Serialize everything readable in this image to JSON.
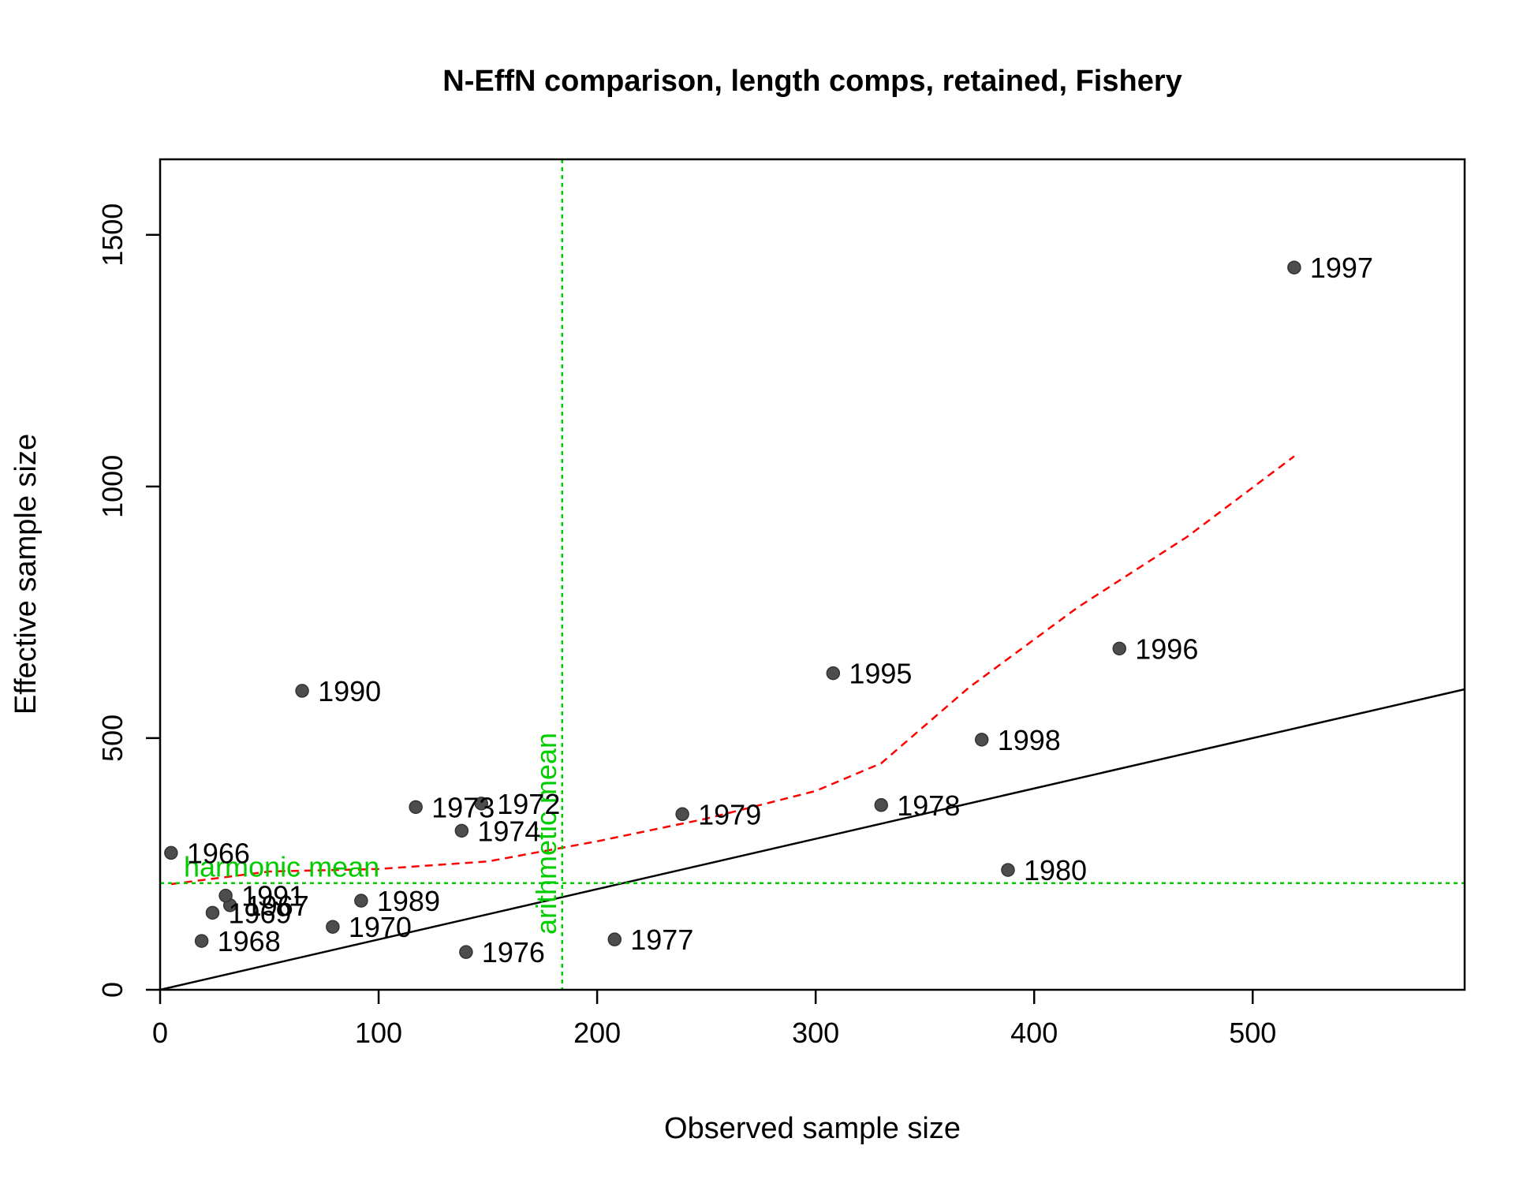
{
  "chart_data": {
    "type": "scatter",
    "title": "N-EffN comparison, length comps, retained, Fishery",
    "xlabel": "Observed sample size",
    "ylabel": "Effective sample size",
    "xlim": [
      0,
      597
    ],
    "ylim": [
      0,
      1650
    ],
    "xticks": [
      0,
      100,
      200,
      300,
      400,
      500
    ],
    "yticks": [
      0,
      500,
      1000,
      1500
    ],
    "grid": false,
    "colors": {
      "points": "#4d4d4d",
      "one_to_one_line": "#000000",
      "smoother": "#ff0000",
      "reference_lines": "#00cc00"
    },
    "points": [
      {
        "label": "1966",
        "x": 5,
        "y": 272
      },
      {
        "label": "1967",
        "x": 32,
        "y": 168
      },
      {
        "label": "1968",
        "x": 19,
        "y": 97
      },
      {
        "label": "1969",
        "x": 24,
        "y": 153
      },
      {
        "label": "1970",
        "x": 79,
        "y": 125
      },
      {
        "label": "1972",
        "x": 147,
        "y": 370
      },
      {
        "label": "1973",
        "x": 117,
        "y": 363
      },
      {
        "label": "1974",
        "x": 138,
        "y": 316
      },
      {
        "label": "1976",
        "x": 140,
        "y": 75
      },
      {
        "label": "1977",
        "x": 208,
        "y": 100
      },
      {
        "label": "1978",
        "x": 330,
        "y": 367
      },
      {
        "label": "1979",
        "x": 239,
        "y": 349
      },
      {
        "label": "1980",
        "x": 388,
        "y": 238
      },
      {
        "label": "1989",
        "x": 92,
        "y": 177
      },
      {
        "label": "1990",
        "x": 65,
        "y": 594
      },
      {
        "label": "1991",
        "x": 30,
        "y": 187
      },
      {
        "label": "1995",
        "x": 308,
        "y": 629
      },
      {
        "label": "1996",
        "x": 439,
        "y": 678
      },
      {
        "label": "1997",
        "x": 519,
        "y": 1435
      },
      {
        "label": "1998",
        "x": 376,
        "y": 497
      }
    ],
    "one_to_one_line": {
      "x": [
        0,
        597
      ],
      "y": [
        0,
        597
      ]
    },
    "smoother": {
      "x": [
        5,
        50,
        100,
        150,
        200,
        250,
        300,
        330,
        370,
        420,
        470,
        519
      ],
      "y": [
        210,
        235,
        240,
        255,
        295,
        340,
        395,
        450,
        600,
        760,
        900,
        1060
      ]
    },
    "harmonic_mean": {
      "label": "harmonic mean",
      "value": 212
    },
    "arithmetic_mean": {
      "label": "arithmetic mean",
      "value": 184
    }
  }
}
